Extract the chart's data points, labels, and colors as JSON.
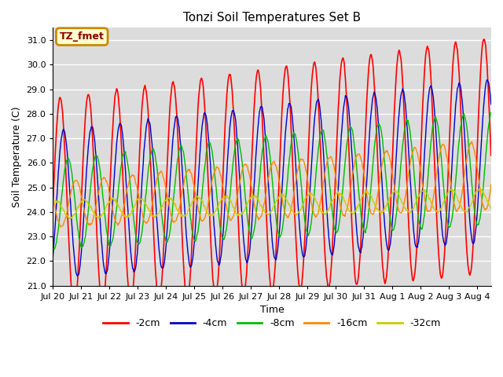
{
  "title": "Tonzi Soil Temperatures Set B",
  "xlabel": "Time",
  "ylabel": "Soil Temperature (C)",
  "ylim": [
    21.0,
    31.5
  ],
  "yticks": [
    21.0,
    22.0,
    23.0,
    24.0,
    25.0,
    26.0,
    27.0,
    28.0,
    29.0,
    30.0,
    31.0
  ],
  "line_colors": [
    "#ff0000",
    "#0000cc",
    "#00bb00",
    "#ff8800",
    "#cccc00"
  ],
  "line_labels": [
    "-2cm",
    "-4cm",
    "-8cm",
    "-16cm",
    "-32cm"
  ],
  "annotation_text": "TZ_fmet",
  "annotation_bg": "#ffffcc",
  "annotation_border": "#cc0000",
  "bg_color": "#dcdcdc",
  "n_days": 15.5,
  "xtick_labels": [
    "Jul 20",
    "Jul 21",
    "Jul 22",
    "Jul 23",
    "Jul 24",
    "Jul 25",
    "Jul 26",
    "Jul 27",
    "Jul 28",
    "Jul 29",
    "Jul 30",
    "Jul 31",
    "Aug 1",
    "Aug 2",
    "Aug 3",
    "Aug 4"
  ],
  "n_points": 744,
  "amplitudes": [
    4.3,
    3.0,
    1.8,
    0.9,
    0.35
  ],
  "amp_growth": [
    0.5,
    0.3,
    0.5,
    0.5,
    0.1
  ],
  "mean_start": [
    24.3,
    24.3,
    24.3,
    24.3,
    24.1
  ],
  "mean_growth": [
    2.0,
    1.8,
    1.5,
    1.2,
    0.4
  ],
  "phase_lag": [
    0.0,
    0.12,
    0.28,
    0.55,
    0.85
  ]
}
